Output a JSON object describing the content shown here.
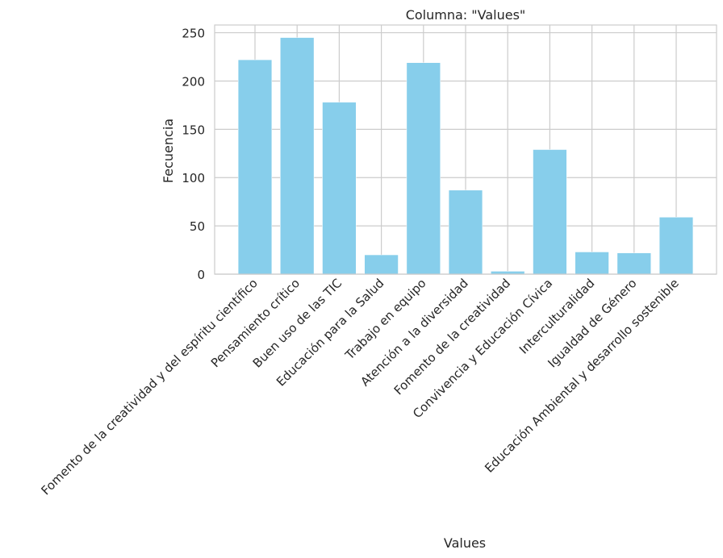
{
  "chart_data": {
    "type": "bar",
    "title": "Columna: \"Values\"",
    "xlabel": "Values",
    "ylabel": "Fecuencia",
    "categories": [
      "Fomento de la creatividad y del espíritu científico",
      "Pensamiento crítico",
      "Buen uso de las TIC",
      "Educación para la Salud",
      "Trabajo en equipo",
      "Atención a la diversidad",
      "Fomento de la creatividad",
      "Convivencia y Educación Cívica",
      "Interculturalidad",
      "Igualdad de Género",
      "Educación Ambiental y desarrollo sostenible"
    ],
    "values": [
      222,
      245,
      178,
      20,
      219,
      87,
      3,
      129,
      23,
      22,
      59
    ],
    "ylim": [
      0,
      258
    ],
    "yticks": [
      0,
      50,
      100,
      150,
      200,
      250
    ],
    "grid": true,
    "bar_color": "#87ceeb"
  }
}
